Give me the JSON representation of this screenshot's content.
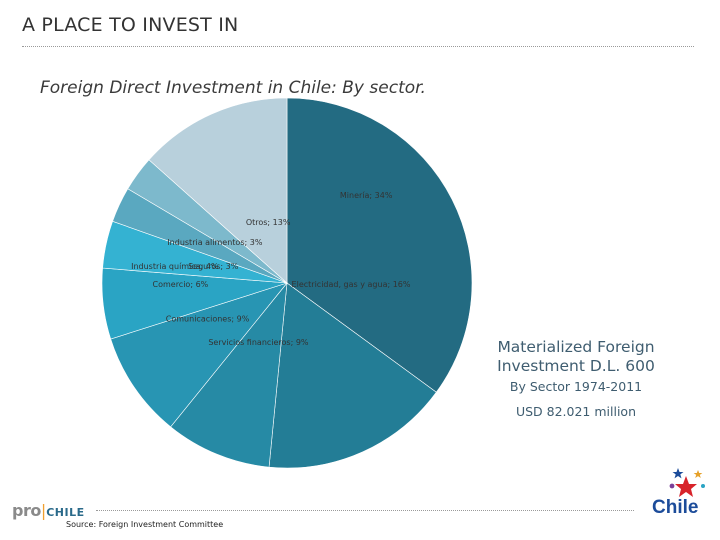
{
  "header": {
    "title": "A PLACE TO INVEST IN"
  },
  "chart_data": {
    "type": "pie",
    "title": "Foreign Direct Investment in Chile: By  sector.",
    "unit": "%",
    "slices": [
      {
        "label": "Minería; 34%",
        "name": "Minería",
        "value": 34,
        "color": "#236b82"
      },
      {
        "label": "Electricidad, gas y agua; 16%",
        "name": "Electricidad, gas y agua",
        "value": 16,
        "color": "#237d96"
      },
      {
        "label": "Servicios financieros; 9%",
        "name": "Servicios financieros",
        "value": 9,
        "color": "#268aa5"
      },
      {
        "label": "Comunicaciones; 9%",
        "name": "Comunicaciones",
        "value": 9,
        "color": "#2895b3"
      },
      {
        "label": "Comercio; 6%",
        "name": "Comercio",
        "value": 6,
        "color": "#2aa4c4"
      },
      {
        "label": "Industria química; 4%",
        "name": "Industria química",
        "value": 4,
        "color": "#34b2d2"
      },
      {
        "label": "Seguros; 3%",
        "name": "Seguros",
        "value": 3,
        "color": "#5aa8c0"
      },
      {
        "label": "Industria alimentos; 3%",
        "name": "Industria alimentos",
        "value": 3,
        "color": "#7db9cc"
      },
      {
        "label": "Otros; 13%",
        "name": "Otros",
        "value": 13,
        "color": "#b8d0dc"
      }
    ]
  },
  "side_panel": {
    "title_line1": "Materialized Foreign",
    "title_line2": "Investment D.L. 600",
    "subtitle": "By Sector 1974-2011",
    "amount": "USD 82.021 million"
  },
  "footer": {
    "source": "Source: Foreign Investment Committee",
    "logo_pro": "pro",
    "logo_pro_chile": "CHILE",
    "logo_chile": "Chile"
  }
}
